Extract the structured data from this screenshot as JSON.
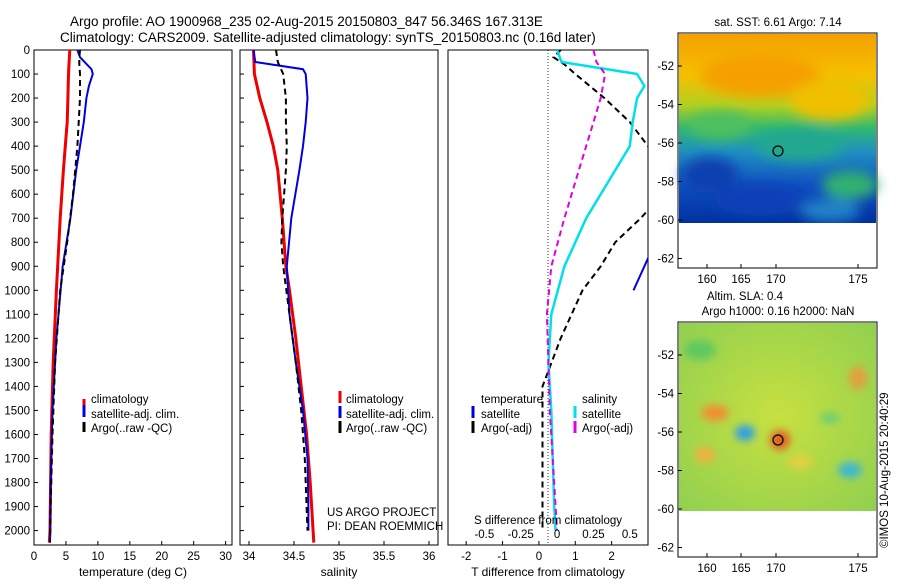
{
  "figure": {
    "title_line1": "Argo profile: AO 1900968_235 02-Aug-2015 20150803_847 56.346S 167.313E",
    "title_line2": "Climatology: CARS2009. Satellite-adjusted climatology: synTS_20150803.nc (0.16d later)",
    "watermark": "©IMOS 10-Aug-2015 20:40:29",
    "credit_line1": "US ARGO PROJECT",
    "credit_line2": "PI: DEAN ROEMMICH"
  },
  "colors": {
    "climatology": "#ee0000",
    "satellite": "#0000dd",
    "argo": "#000000",
    "cyan": "#00e0e8",
    "magenta": "#e000e0"
  },
  "map_panels": [
    {
      "title": "sat. SST: 6.61  Argo: 7.14",
      "title2": "",
      "x_ticks": [
        "160",
        "165",
        "170",
        "175"
      ],
      "y_ticks": [
        "-52",
        "-54",
        "-56",
        "-58",
        "-60",
        "-62"
      ]
    },
    {
      "title": "Altim. SLA: 0.4",
      "title2": "Argo h1000: 0.16 h2000: NaN",
      "x_ticks": [
        "160",
        "165",
        "170",
        "175"
      ],
      "y_ticks": [
        "-52",
        "-54",
        "-56",
        "-58",
        "-60",
        "-62"
      ]
    }
  ],
  "chart_data": [
    {
      "type": "line",
      "xlabel": "temperature (deg C)",
      "ylabel": "",
      "xlim": [
        0,
        31
      ],
      "ylim": [
        2060,
        0
      ],
      "y_inverted": true,
      "x_ticks": [
        0,
        5,
        10,
        15,
        20,
        25,
        30
      ],
      "y_ticks": [
        0,
        100,
        200,
        300,
        400,
        500,
        600,
        700,
        800,
        900,
        1000,
        1100,
        1200,
        1300,
        1400,
        1500,
        1600,
        1700,
        1800,
        1900,
        2000
      ],
      "legend": [
        "climatology",
        "satellite-adj. clim.",
        "Argo(..raw -QC)"
      ],
      "legend_position": "lower-right",
      "series": [
        {
          "name": "climatology",
          "depth": [
            0,
            50,
            100,
            200,
            300,
            400,
            500,
            700,
            1000,
            1300,
            1600,
            2000,
            2050
          ],
          "values": [
            5.6,
            5.5,
            5.4,
            5.3,
            5.2,
            4.9,
            4.6,
            4.1,
            3.5,
            3.0,
            2.7,
            2.5,
            2.4
          ]
        },
        {
          "name": "satellite-adj. clim.",
          "depth": [
            0,
            30,
            80,
            100,
            150,
            200,
            300,
            400,
            500,
            700,
            900,
            1200,
            1500,
            1800,
            2050
          ],
          "values": [
            6.8,
            7.2,
            9.0,
            9.2,
            8.6,
            8.2,
            7.8,
            7.2,
            6.6,
            5.7,
            4.5,
            3.5,
            2.9,
            2.6,
            2.5
          ]
        },
        {
          "name": "Argo(..raw -QC)",
          "depth": [
            0,
            30,
            60,
            100,
            200,
            300,
            400,
            600,
            800,
            1000,
            1300,
            1600,
            1900,
            2050
          ],
          "values": [
            7.2,
            7.1,
            7.1,
            7.2,
            7.2,
            7.0,
            6.8,
            6.1,
            5.2,
            4.1,
            3.3,
            2.9,
            2.6,
            2.5
          ]
        }
      ]
    },
    {
      "type": "line",
      "xlabel": "salinity",
      "ylabel": "",
      "xlim": [
        33.9,
        36.1
      ],
      "ylim": [
        2060,
        0
      ],
      "y_inverted": true,
      "x_ticks": [
        34,
        34.5,
        35,
        35.5,
        36
      ],
      "x_tick_labels": [
        "34",
        "34.5",
        "35",
        "35.5",
        "36"
      ],
      "y_ticks": [
        0,
        100,
        200,
        300,
        400,
        500,
        600,
        700,
        800,
        900,
        1000,
        1100,
        1200,
        1300,
        1400,
        1500,
        1600,
        1700,
        1800,
        1900,
        2000
      ],
      "legend": [
        "climatology",
        "satellite-adj. clim.",
        "Argo(..raw -QC)"
      ],
      "legend_position": "middle-right",
      "series": [
        {
          "name": "climatology",
          "depth": [
            0,
            100,
            200,
            300,
            400,
            500,
            700,
            900,
            1000,
            1200,
            1400,
            1600,
            1800,
            2050
          ],
          "values": [
            34.05,
            34.06,
            34.12,
            34.2,
            34.27,
            34.32,
            34.37,
            34.41,
            34.45,
            34.52,
            34.58,
            34.64,
            34.68,
            34.72
          ]
        },
        {
          "name": "satellite-adj. clim.",
          "depth": [
            0,
            50,
            80,
            100,
            150,
            200,
            300,
            400,
            500,
            700,
            900,
            1100,
            1300,
            1500,
            1700,
            1900,
            2000
          ],
          "values": [
            34.05,
            34.07,
            34.6,
            34.63,
            34.64,
            34.65,
            34.63,
            34.6,
            34.56,
            34.47,
            34.42,
            34.45,
            34.52,
            34.6,
            34.65,
            34.66,
            34.66
          ]
        },
        {
          "name": "Argo(..raw -QC)",
          "depth": [
            0,
            50,
            100,
            200,
            300,
            400,
            500,
            700,
            800,
            900,
            1100,
            1300,
            1500,
            1700,
            1900,
            2000
          ],
          "values": [
            34.3,
            34.32,
            34.38,
            34.41,
            34.41,
            34.42,
            34.41,
            34.37,
            34.36,
            34.38,
            34.45,
            34.52,
            34.58,
            34.62,
            34.64,
            34.65
          ]
        }
      ]
    },
    {
      "type": "line",
      "xlabel": "T difference from climatology",
      "top_axis_label": "S difference from climatology",
      "xlim": [
        -2.5,
        3.0
      ],
      "ylim": [
        2060,
        0
      ],
      "y_inverted": true,
      "x_ticks": [
        -2,
        -1,
        0,
        1,
        2
      ],
      "top_ticks": [
        -0.5,
        -0.25,
        0,
        0.25,
        0.5
      ],
      "top_tick_labels": [
        "-0.5",
        "-0.25",
        "0",
        "0.25",
        "0.5"
      ],
      "legend_temperature_title": "temperature",
      "legend_salinity_title": "salinity",
      "legend": [
        "satellite",
        "Argo(-adj)",
        "satellite",
        "Argo(-adj)"
      ],
      "legend_position": "lower-center",
      "series": [
        {
          "name": "temperature satellite",
          "depth": [
            0,
            70,
            90,
            110,
            200,
            400,
            600,
            800,
            1000
          ],
          "values": [
            6,
            5,
            3.5,
            3.4,
            3.4,
            3.4,
            3.3,
            3.2,
            2.6
          ]
        },
        {
          "name": "temperature Argo(-adj)",
          "depth": [
            0,
            30,
            60,
            100,
            200,
            300,
            400,
            500,
            600,
            700,
            800,
            900,
            1000,
            1200,
            1400,
            1700,
            2000
          ],
          "values": [
            0.6,
            0.4,
            0.7,
            1.0,
            1.8,
            2.5,
            3.0,
            3.5,
            3.4,
            2.8,
            2.1,
            1.7,
            1.2,
            0.6,
            0.1,
            0.1,
            0.1
          ]
        },
        {
          "name": "salinity satellite",
          "depth": [
            0,
            50,
            100,
            150,
            200,
            300,
            400,
            500,
            700,
            900,
            1100,
            1300,
            1500,
            1700,
            1900,
            2000
          ],
          "values": [
            0.0,
            0.03,
            0.55,
            0.6,
            0.55,
            0.52,
            0.5,
            0.4,
            0.2,
            0.05,
            -0.04,
            -0.06,
            -0.04,
            -0.03,
            -0.02,
            -0.01
          ]
        },
        {
          "name": "salinity Argo(-adj)",
          "depth": [
            0,
            50,
            100,
            200,
            300,
            400,
            500,
            700,
            900,
            1100,
            1300,
            1500,
            1700,
            1900,
            2000
          ],
          "values": [
            0.25,
            0.27,
            0.33,
            0.3,
            0.25,
            0.2,
            0.15,
            0.05,
            -0.04,
            -0.07,
            -0.06,
            -0.05,
            -0.03,
            -0.01,
            0.0
          ]
        }
      ]
    }
  ]
}
